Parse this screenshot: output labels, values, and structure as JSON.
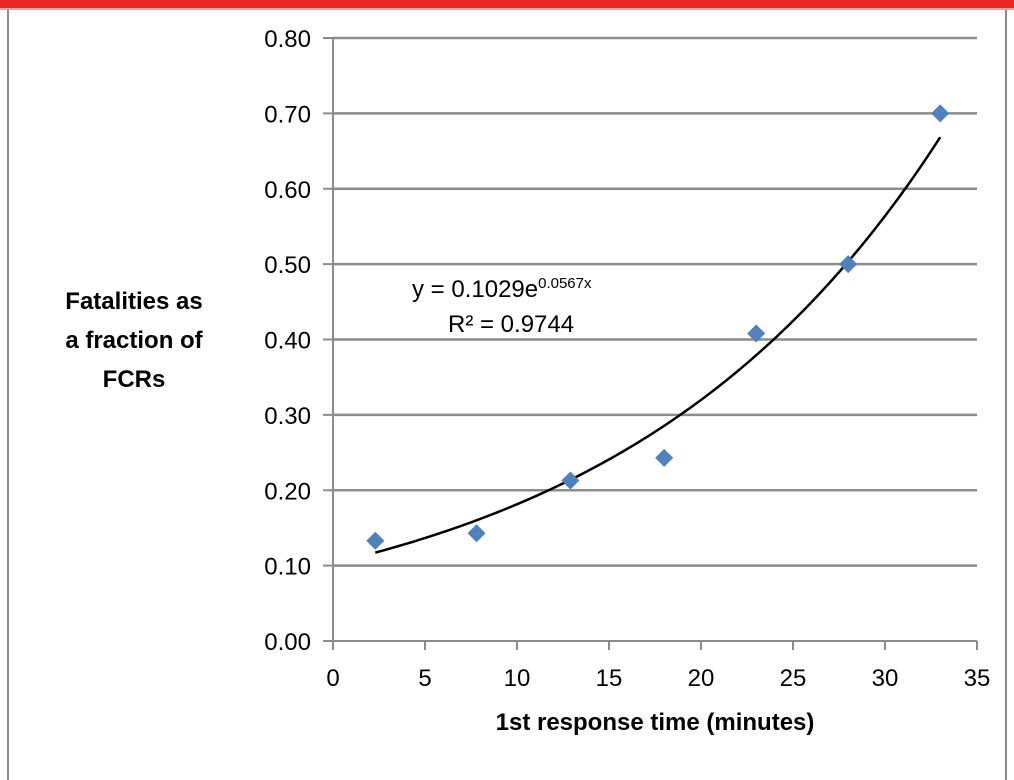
{
  "chart_data": {
    "type": "scatter",
    "xlabel": "1st response time  (minutes)",
    "ylabel_lines": [
      "Fatalities as",
      "a fraction of",
      "FCRs"
    ],
    "xlim": [
      0,
      35
    ],
    "ylim": [
      0,
      0.8
    ],
    "x_ticks": [
      0,
      5,
      10,
      15,
      20,
      25,
      30,
      35
    ],
    "x_tick_labels": [
      "0",
      "5",
      "10",
      "15",
      "20",
      "25",
      "30",
      "35"
    ],
    "y_ticks": [
      0,
      0.1,
      0.2,
      0.3,
      0.4,
      0.5,
      0.6,
      0.7,
      0.8
    ],
    "y_tick_labels": [
      "0.00",
      "0.10",
      "0.20",
      "0.30",
      "0.40",
      "0.50",
      "0.60",
      "0.70",
      "0.80"
    ],
    "grid": "horizontal",
    "series": [
      {
        "marker": "diamond",
        "color": "#4f81bd",
        "x": [
          2.3,
          7.8,
          12.9,
          18,
          23,
          28,
          33
        ],
        "y": [
          0.133,
          0.143,
          0.213,
          0.243,
          0.408,
          0.5,
          0.7
        ]
      }
    ],
    "trendline": {
      "type": "exponential",
      "a": 0.1029,
      "b": 0.0567,
      "x_range": [
        2.3,
        33
      ],
      "color": "#000000",
      "equation_base": "y = 0.1029e",
      "equation_exp": "0.0567x",
      "r_squared": "R² = 0.9744"
    }
  },
  "colors": {
    "accent_bar": "#e8281e",
    "grid": "#8c8c8c",
    "marker": "#4f81bd"
  }
}
